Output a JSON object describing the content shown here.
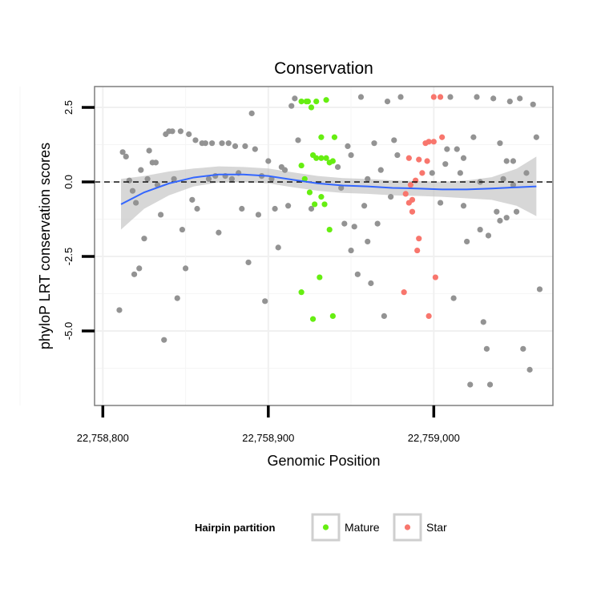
{
  "chart_data": {
    "type": "scatter",
    "title": "Conservation",
    "xlabel": "Genomic Position",
    "ylabel": "phyloP LRT conservation scores",
    "xlim": [
      22758795,
      22759072
    ],
    "ylim": [
      -7.5,
      3.2
    ],
    "x_ticks": [
      {
        "value": 22758800,
        "label": "22,758,800"
      },
      {
        "value": 22758900,
        "label": "22,758,900"
      },
      {
        "value": 22759000,
        "label": "22,759,000"
      }
    ],
    "y_ticks": [
      {
        "value": 2.5,
        "label": "2.5"
      },
      {
        "value": 0,
        "label": "0.0"
      },
      {
        "value": -2.5,
        "label": "-2.5"
      },
      {
        "value": -5,
        "label": "-5.0"
      }
    ],
    "reference_line": {
      "y": 0,
      "style": "dashed"
    },
    "smooth": {
      "color": "#3366ff",
      "band_color": "#bdbdbd",
      "points": [
        {
          "x": 22758811,
          "y": -0.75,
          "lo": -1.6,
          "hi": 0.1
        },
        {
          "x": 22758825,
          "y": -0.35,
          "lo": -0.9,
          "hi": 0.2
        },
        {
          "x": 22758840,
          "y": -0.05,
          "lo": -0.45,
          "hi": 0.35
        },
        {
          "x": 22758855,
          "y": 0.15,
          "lo": -0.15,
          "hi": 0.45
        },
        {
          "x": 22758870,
          "y": 0.25,
          "lo": -0.02,
          "hi": 0.52
        },
        {
          "x": 22758885,
          "y": 0.25,
          "lo": 0.0,
          "hi": 0.5
        },
        {
          "x": 22758900,
          "y": 0.2,
          "lo": -0.05,
          "hi": 0.45
        },
        {
          "x": 22758915,
          "y": 0.07,
          "lo": -0.18,
          "hi": 0.32
        },
        {
          "x": 22758930,
          "y": -0.05,
          "lo": -0.3,
          "hi": 0.2
        },
        {
          "x": 22758945,
          "y": -0.12,
          "lo": -0.37,
          "hi": 0.13
        },
        {
          "x": 22758960,
          "y": -0.15,
          "lo": -0.4,
          "hi": 0.1
        },
        {
          "x": 22758975,
          "y": -0.2,
          "lo": -0.45,
          "hi": 0.05
        },
        {
          "x": 22758990,
          "y": -0.22,
          "lo": -0.47,
          "hi": 0.03
        },
        {
          "x": 22759005,
          "y": -0.25,
          "lo": -0.5,
          "hi": 0.0
        },
        {
          "x": 22759020,
          "y": -0.25,
          "lo": -0.55,
          "hi": 0.05
        },
        {
          "x": 22759035,
          "y": -0.22,
          "lo": -0.6,
          "hi": 0.16
        },
        {
          "x": 22759050,
          "y": -0.18,
          "lo": -0.8,
          "hi": 0.44
        },
        {
          "x": 22759062,
          "y": -0.15,
          "lo": -1.15,
          "hi": 0.85
        }
      ]
    },
    "series": [
      {
        "name": "Mature",
        "color": "#66ee11",
        "points": [
          [
            22758920,
            2.7
          ],
          [
            22758923,
            2.7
          ],
          [
            22758926,
            2.5
          ],
          [
            22758924,
            2.7
          ],
          [
            22758929,
            2.7
          ],
          [
            22758935,
            2.75
          ],
          [
            22758932,
            1.5
          ],
          [
            22758940,
            1.5
          ],
          [
            22758927,
            0.9
          ],
          [
            22758929,
            0.8
          ],
          [
            22758932,
            0.8
          ],
          [
            22758935,
            0.8
          ],
          [
            22758937,
            0.65
          ],
          [
            22758939,
            0.7
          ],
          [
            22758920,
            0.55
          ],
          [
            22758922,
            0.1
          ],
          [
            22758925,
            -0.35
          ],
          [
            22758928,
            -0.75
          ],
          [
            22758932,
            -0.5
          ],
          [
            22758934,
            -0.75
          ],
          [
            22758937,
            -1.6
          ],
          [
            22758920,
            -3.7
          ],
          [
            22758931,
            -3.2
          ],
          [
            22758927,
            -4.6
          ],
          [
            22758939,
            -4.5
          ]
        ]
      },
      {
        "name": "Star",
        "color": "#f8766d",
        "points": [
          [
            22759000,
            2.85
          ],
          [
            22759004,
            2.85
          ],
          [
            22759005,
            1.5
          ],
          [
            22759000,
            1.35
          ],
          [
            22758997,
            1.35
          ],
          [
            22758995,
            1.3
          ],
          [
            22758985,
            0.8
          ],
          [
            22758991,
            0.75
          ],
          [
            22758996,
            0.7
          ],
          [
            22758993,
            0.3
          ],
          [
            22758989,
            0.05
          ],
          [
            22758986,
            -0.1
          ],
          [
            22758983,
            -0.4
          ],
          [
            22758987,
            -0.6
          ],
          [
            22758985,
            -0.7
          ],
          [
            22758987,
            -1.0
          ],
          [
            22758991,
            -1.9
          ],
          [
            22758990,
            -2.3
          ],
          [
            22759001,
            -3.2
          ],
          [
            22758982,
            -3.7
          ],
          [
            22758997,
            -4.5
          ]
        ]
      },
      {
        "name": "",
        "color": "#939393",
        "points": [
          [
            22758810,
            -4.3
          ],
          [
            22758812,
            1.0
          ],
          [
            22758814,
            0.85
          ],
          [
            22758816,
            0.05
          ],
          [
            22758818,
            -0.3
          ],
          [
            22758820,
            -0.7
          ],
          [
            22758819,
            -3.1
          ],
          [
            22758822,
            -2.9
          ],
          [
            22758823,
            0.4
          ],
          [
            22758825,
            -1.9
          ],
          [
            22758827,
            0.1
          ],
          [
            22758828,
            1.05
          ],
          [
            22758830,
            0.65
          ],
          [
            22758832,
            0.65
          ],
          [
            22758833,
            -0.1
          ],
          [
            22758835,
            -1.1
          ],
          [
            22758837,
            -5.3
          ],
          [
            22758838,
            1.6
          ],
          [
            22758840,
            1.7
          ],
          [
            22758842,
            1.7
          ],
          [
            22758843,
            0.1
          ],
          [
            22758845,
            -3.9
          ],
          [
            22758847,
            1.7
          ],
          [
            22758848,
            -1.6
          ],
          [
            22758850,
            -2.9
          ],
          [
            22758852,
            1.6
          ],
          [
            22758854,
            -0.6
          ],
          [
            22758856,
            1.4
          ],
          [
            22758857,
            -0.9
          ],
          [
            22758860,
            1.3
          ],
          [
            22758862,
            1.3
          ],
          [
            22758864,
            0.1
          ],
          [
            22758866,
            1.3
          ],
          [
            22758868,
            0.2
          ],
          [
            22758870,
            -1.7
          ],
          [
            22758872,
            1.3
          ],
          [
            22758874,
            0.2
          ],
          [
            22758876,
            1.3
          ],
          [
            22758878,
            0.1
          ],
          [
            22758880,
            1.2
          ],
          [
            22758882,
            0.3
          ],
          [
            22758884,
            -0.9
          ],
          [
            22758886,
            1.2
          ],
          [
            22758888,
            -2.7
          ],
          [
            22758890,
            2.3
          ],
          [
            22758892,
            1.1
          ],
          [
            22758894,
            -1.1
          ],
          [
            22758896,
            0.2
          ],
          [
            22758898,
            -4.0
          ],
          [
            22758900,
            0.7
          ],
          [
            22758902,
            0.1
          ],
          [
            22758904,
            -0.9
          ],
          [
            22758906,
            -2.2
          ],
          [
            22758908,
            0.5
          ],
          [
            22758910,
            0.4
          ],
          [
            22758912,
            -0.8
          ],
          [
            22758914,
            2.55
          ],
          [
            22758916,
            2.8
          ],
          [
            22758918,
            1.4
          ],
          [
            22758944,
            -0.2
          ],
          [
            22758946,
            -1.4
          ],
          [
            22758948,
            1.2
          ],
          [
            22758950,
            -2.3
          ],
          [
            22758952,
            -1.5
          ],
          [
            22758954,
            -3.1
          ],
          [
            22758956,
            2.85
          ],
          [
            22758958,
            -0.8
          ],
          [
            22758960,
            -2.0
          ],
          [
            22758962,
            -3.4
          ],
          [
            22758964,
            1.3
          ],
          [
            22758966,
            -1.4
          ],
          [
            22758968,
            0.4
          ],
          [
            22758970,
            -4.5
          ],
          [
            22758972,
            2.7
          ],
          [
            22758974,
            -0.5
          ],
          [
            22758976,
            1.4
          ],
          [
            22758978,
            0.9
          ],
          [
            22758980,
            2.85
          ],
          [
            22758999,
            0.3
          ],
          [
            22759007,
            0.6
          ],
          [
            22759010,
            2.85
          ],
          [
            22759012,
            -3.9
          ],
          [
            22759014,
            1.1
          ],
          [
            22759016,
            0.3
          ],
          [
            22759018,
            -0.8
          ],
          [
            22759020,
            -2.0
          ],
          [
            22759022,
            -6.8
          ],
          [
            22759024,
            1.5
          ],
          [
            22759026,
            2.85
          ],
          [
            22759028,
            0.0
          ],
          [
            22759030,
            -4.7
          ],
          [
            22759032,
            -5.6
          ],
          [
            22759034,
            -6.8
          ],
          [
            22759036,
            2.8
          ],
          [
            22759038,
            -1.0
          ],
          [
            22759040,
            1.3
          ],
          [
            22759042,
            0.1
          ],
          [
            22759044,
            -1.2
          ],
          [
            22759046,
            2.7
          ],
          [
            22759048,
            0.7
          ],
          [
            22759050,
            -1.0
          ],
          [
            22759052,
            2.8
          ],
          [
            22759054,
            -5.6
          ],
          [
            22759056,
            0.3
          ],
          [
            22759058,
            -6.3
          ],
          [
            22759060,
            2.6
          ],
          [
            22759062,
            1.5
          ],
          [
            22759064,
            -3.6
          ],
          [
            22758926,
            -0.9
          ],
          [
            22758942,
            0.5
          ],
          [
            22758950,
            0.9
          ],
          [
            22758960,
            0.1
          ],
          [
            22759004,
            -0.7
          ],
          [
            22759008,
            1.1
          ],
          [
            22759018,
            0.8
          ],
          [
            22759028,
            -1.6
          ],
          [
            22759033,
            -1.8
          ],
          [
            22759040,
            -1.3
          ],
          [
            22759044,
            0.7
          ],
          [
            22759048,
            -0.1
          ]
        ]
      }
    ],
    "legend": {
      "title": "Hairpin partition",
      "position": "bottom",
      "entries": [
        {
          "label": "Mature",
          "color": "#66ee11"
        },
        {
          "label": "Star",
          "color": "#f8766d"
        }
      ]
    },
    "grid": true
  }
}
